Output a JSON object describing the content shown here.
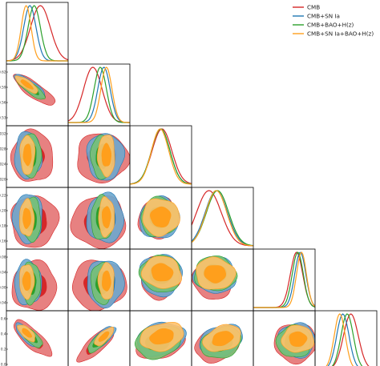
{
  "chart_data": {
    "type": "triangle-corner",
    "n_params": 6,
    "colors": {
      "CMB": "#d62728",
      "CMB+SN Ia": "#1f77b4",
      "CMB+BAO+H(z)": "#2ca02c",
      "CMB+SN Ia+BAO+H(z)": "#ff9f1c"
    },
    "legend": {
      "placement": "top-right",
      "entries": [
        {
          "name": "CMB",
          "color": "#d62728"
        },
        {
          "name": "CMB+SN Ia",
          "color": "#1f77b4"
        },
        {
          "name": "CMB+BAO+H(z)",
          "color": "#2ca02c"
        },
        {
          "name": "CMB+SN Ia+BAO+H(z)",
          "color": "#ff9f1c"
        }
      ]
    },
    "y_tick_labels": [
      [],
      [
        "0.62",
        "0.59",
        "0.56",
        "0.53"
      ],
      [
        "0.032",
        "0.028",
        "0.024",
        "0.020"
      ],
      [
        "0.22",
        "0.20",
        "0.18",
        "0.16"
      ],
      [
        "0.08",
        "0.04",
        "0.00",
        "-0.04"
      ],
      [
        "0.6",
        "0.4",
        "0.2",
        "0.0"
      ]
    ],
    "marginals": [
      {
        "param": 0,
        "peaks": [
          0.55,
          0.38,
          0.45,
          0.32
        ],
        "widths": [
          0.16,
          0.1,
          0.1,
          0.08
        ]
      },
      {
        "param": 1,
        "peaks": [
          0.4,
          0.58,
          0.52,
          0.62
        ],
        "widths": [
          0.15,
          0.1,
          0.1,
          0.09
        ]
      },
      {
        "param": 2,
        "peaks": [
          0.52,
          0.5,
          0.5,
          0.49
        ],
        "widths": [
          0.16,
          0.15,
          0.15,
          0.14
        ]
      },
      {
        "param": 3,
        "peaks": [
          0.28,
          0.4,
          0.42,
          0.4
        ],
        "widths": [
          0.2,
          0.18,
          0.18,
          0.17
        ]
      },
      {
        "param": 4,
        "peaks": [
          0.7,
          0.76,
          0.72,
          0.78
        ],
        "widths": [
          0.1,
          0.09,
          0.09,
          0.08
        ]
      },
      {
        "param": 5,
        "peaks": [
          0.58,
          0.45,
          0.52,
          0.4
        ],
        "widths": [
          0.12,
          0.1,
          0.1,
          0.09
        ]
      }
    ],
    "contours_note": "68% and 95% credible regions for each pair, drawn per dataset"
  }
}
